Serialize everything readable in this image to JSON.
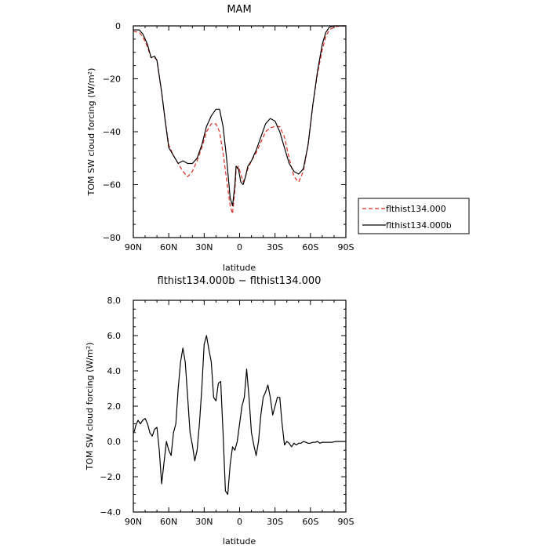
{
  "chart_data": [
    {
      "type": "line",
      "title": "MAM",
      "xlabel": "latitude",
      "ylabel": "TOM SW cloud forcing (W/m²)",
      "xlim": [
        90,
        -90
      ],
      "ylim": [
        -80,
        0
      ],
      "x_ticks": [
        "90N",
        "60N",
        "30N",
        "0",
        "30S",
        "60S",
        "90S"
      ],
      "y_ticks": [
        "0",
        "−20",
        "−40",
        "−60",
        "−80"
      ],
      "legend": {
        "position": "right"
      },
      "series": [
        {
          "name": "flthist134.000",
          "color": "#e0271f",
          "dash": "dashed",
          "x": [
            90,
            85,
            82,
            78,
            75,
            72,
            70,
            66,
            63,
            60,
            56,
            52,
            48,
            44,
            40,
            36,
            32,
            28,
            24,
            20,
            17,
            14,
            11,
            8,
            6,
            4,
            3,
            1,
            -1,
            -3,
            -5,
            -7,
            -10,
            -14,
            -18,
            -22,
            -26,
            -30,
            -34,
            -38,
            -42,
            -46,
            -50,
            -54,
            -58,
            -62,
            -66,
            -70,
            -73,
            -76,
            -80,
            -85,
            -90
          ],
          "y": [
            -2,
            -2.5,
            -4,
            -8,
            -12,
            -12,
            -13,
            -25,
            -36,
            -45,
            -49,
            -52,
            -55,
            -57,
            -55,
            -51,
            -46,
            -40,
            -37,
            -37,
            -40,
            -48,
            -58,
            -68,
            -71,
            -62,
            -55,
            -53,
            -56,
            -59,
            -57,
            -54,
            -51,
            -48,
            -44,
            -40,
            -38.5,
            -38,
            -38,
            -42,
            -50,
            -57,
            -59,
            -55,
            -45,
            -30,
            -18,
            -9,
            -4,
            -1.5,
            -0.5,
            0,
            0
          ]
        },
        {
          "name": "flthist134.000b",
          "color": "#000000",
          "dash": "solid",
          "x": [
            90,
            85,
            82,
            78,
            75,
            72,
            70,
            66,
            63,
            60,
            56,
            52,
            48,
            44,
            40,
            36,
            32,
            28,
            24,
            20,
            17,
            14,
            11,
            8,
            6,
            4,
            3,
            1,
            -1,
            -3,
            -5,
            -7,
            -10,
            -14,
            -18,
            -22,
            -26,
            -30,
            -34,
            -38,
            -42,
            -46,
            -50,
            -54,
            -58,
            -62,
            -66,
            -70,
            -73,
            -76,
            -80,
            -85,
            -90
          ],
          "y": [
            -1.5,
            -1.5,
            -3,
            -7,
            -12,
            -11.5,
            -13,
            -25,
            -36,
            -46,
            -49,
            -52,
            -51,
            -52,
            -52,
            -50,
            -45,
            -38,
            -34,
            -31.5,
            -31.5,
            -38,
            -50,
            -65,
            -68,
            -60,
            -53,
            -54,
            -59,
            -60,
            -57,
            -53,
            -51,
            -47,
            -42,
            -37,
            -35,
            -36,
            -40,
            -46,
            -52,
            -55,
            -56,
            -54,
            -45,
            -30,
            -17,
            -7,
            -2.5,
            -0.5,
            0,
            0,
            0
          ]
        }
      ]
    },
    {
      "type": "line",
      "title": "flthist134.000b − flthist134.000",
      "xlabel": "latitude",
      "ylabel": "TOM SW cloud forcing (W/m²)",
      "xlim": [
        90,
        -90
      ],
      "ylim": [
        -4,
        8
      ],
      "x_ticks": [
        "90N",
        "60N",
        "30N",
        "0",
        "30S",
        "60S",
        "90S"
      ],
      "y_ticks": [
        "8.0",
        "6.0",
        "4.0",
        "2.0",
        "0.0",
        "−2.0",
        "−4.0"
      ],
      "series": [
        {
          "color": "#000000",
          "dash": "solid",
          "x": [
            90,
            89,
            88,
            86,
            84,
            82,
            80,
            78,
            76,
            74,
            72,
            70,
            68,
            66,
            64,
            62,
            60,
            58,
            56,
            54,
            52,
            50,
            48,
            46,
            44,
            42,
            40,
            38,
            36,
            34,
            32,
            30,
            28,
            26,
            24,
            22,
            20,
            18,
            16,
            14,
            12,
            10,
            8,
            6,
            4,
            2,
            0,
            -2,
            -4,
            -6,
            -8,
            -10,
            -12,
            -14,
            -16,
            -18,
            -20,
            -22,
            -24,
            -26,
            -28,
            -30,
            -32,
            -34,
            -36,
            -38,
            -40,
            -42,
            -44,
            -46,
            -48,
            -50,
            -52,
            -54,
            -56,
            -58,
            -60,
            -62,
            -64,
            -66,
            -68,
            -70,
            -72,
            -74,
            -76,
            -78,
            -80,
            -82,
            -84,
            -86,
            -88,
            -90
          ],
          "y": [
            0.5,
            0.6,
            0.9,
            1.2,
            1.0,
            1.2,
            1.3,
            1.0,
            0.5,
            0.3,
            0.7,
            0.8,
            -0.5,
            -2.4,
            -1.2,
            0.0,
            -0.5,
            -0.8,
            0.5,
            1.0,
            3.0,
            4.5,
            5.3,
            4.5,
            2.5,
            0.5,
            -0.2,
            -1.1,
            -0.5,
            1.0,
            3.0,
            5.5,
            6.0,
            5.2,
            4.5,
            2.5,
            2.3,
            3.3,
            3.4,
            0.5,
            -2.8,
            -3.0,
            -1.3,
            -0.3,
            -0.5,
            0.0,
            1.0,
            2.0,
            2.5,
            4.1,
            2.5,
            0.5,
            -0.2,
            -0.8,
            0.0,
            1.5,
            2.5,
            2.8,
            3.2,
            2.5,
            1.5,
            2.0,
            2.5,
            2.5,
            1.0,
            -0.2,
            0.0,
            -0.1,
            -0.3,
            -0.1,
            -0.2,
            -0.1,
            -0.1,
            0.0,
            -0.05,
            -0.1,
            -0.1,
            -0.05,
            -0.05,
            0.0,
            -0.1,
            -0.05,
            -0.05,
            -0.05,
            -0.05,
            -0.05,
            -0.02,
            0.0,
            0.0,
            0.0,
            0.0,
            0.0
          ]
        }
      ]
    }
  ]
}
